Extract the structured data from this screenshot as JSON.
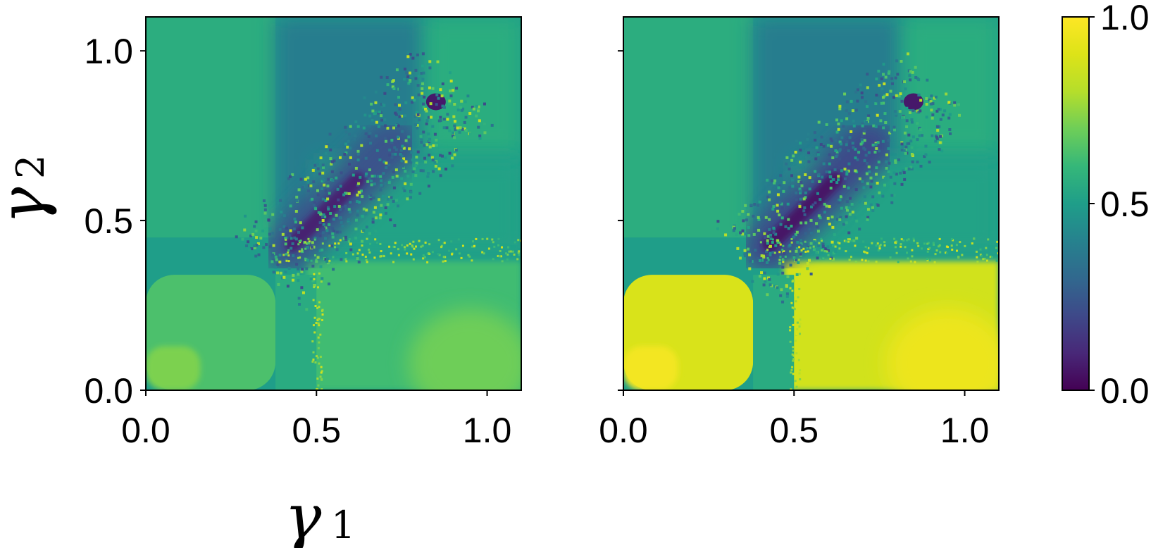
{
  "chart_data": [
    {
      "type": "heatmap",
      "xlabel": "γ1",
      "xlabel_symbol": "γ",
      "xlabel_sub": "1",
      "ylabel": "γ2",
      "ylabel_symbol": "γ",
      "ylabel_sub": "2",
      "xlim": [
        0,
        1.1
      ],
      "ylim": [
        0,
        1.1
      ],
      "xticks": [
        0.0,
        0.5,
        1.0
      ],
      "yticks": [
        0.0,
        0.5,
        1.0
      ],
      "xtick_labels": [
        "0.0",
        "0.5",
        "1.0"
      ],
      "ytick_labels": [
        "0.0",
        "0.5",
        "1.0"
      ],
      "colormap": "viridis",
      "value_range": [
        0,
        1
      ],
      "regions_approx": {
        "low_gamma_corner_value": 0.72,
        "background_value": 0.5,
        "diagonal_valley_min_value": 0.08,
        "valley_start": [
          0.42,
          0.42
        ],
        "valley_end": [
          0.72,
          0.72
        ],
        "hole_center": [
          0.85,
          0.85
        ]
      }
    },
    {
      "type": "heatmap",
      "xlabel": "",
      "ylabel": "",
      "xlim": [
        0,
        1.1
      ],
      "ylim": [
        0,
        1.1
      ],
      "xticks": [
        0.0,
        0.5,
        1.0
      ],
      "yticks": [
        0.0,
        0.5,
        1.0
      ],
      "xtick_labels": [
        "0.0",
        "0.5",
        "1.0"
      ],
      "ytick_labels": [],
      "colormap": "viridis",
      "value_range": [
        0,
        1
      ],
      "regions_approx": {
        "low_gamma_corner_value": 0.97,
        "background_value": 0.5,
        "diagonal_valley_min_value": 0.05,
        "valley_start": [
          0.42,
          0.42
        ],
        "valley_end": [
          0.72,
          0.72
        ],
        "hole_center": [
          0.85,
          0.85
        ]
      }
    }
  ],
  "colorbar": {
    "min": 0.0,
    "max": 1.0,
    "ticks": [
      0.0,
      0.5,
      1.0
    ],
    "tick_labels": [
      "0.0",
      "0.5",
      "1.0"
    ],
    "colormap": "viridis"
  }
}
